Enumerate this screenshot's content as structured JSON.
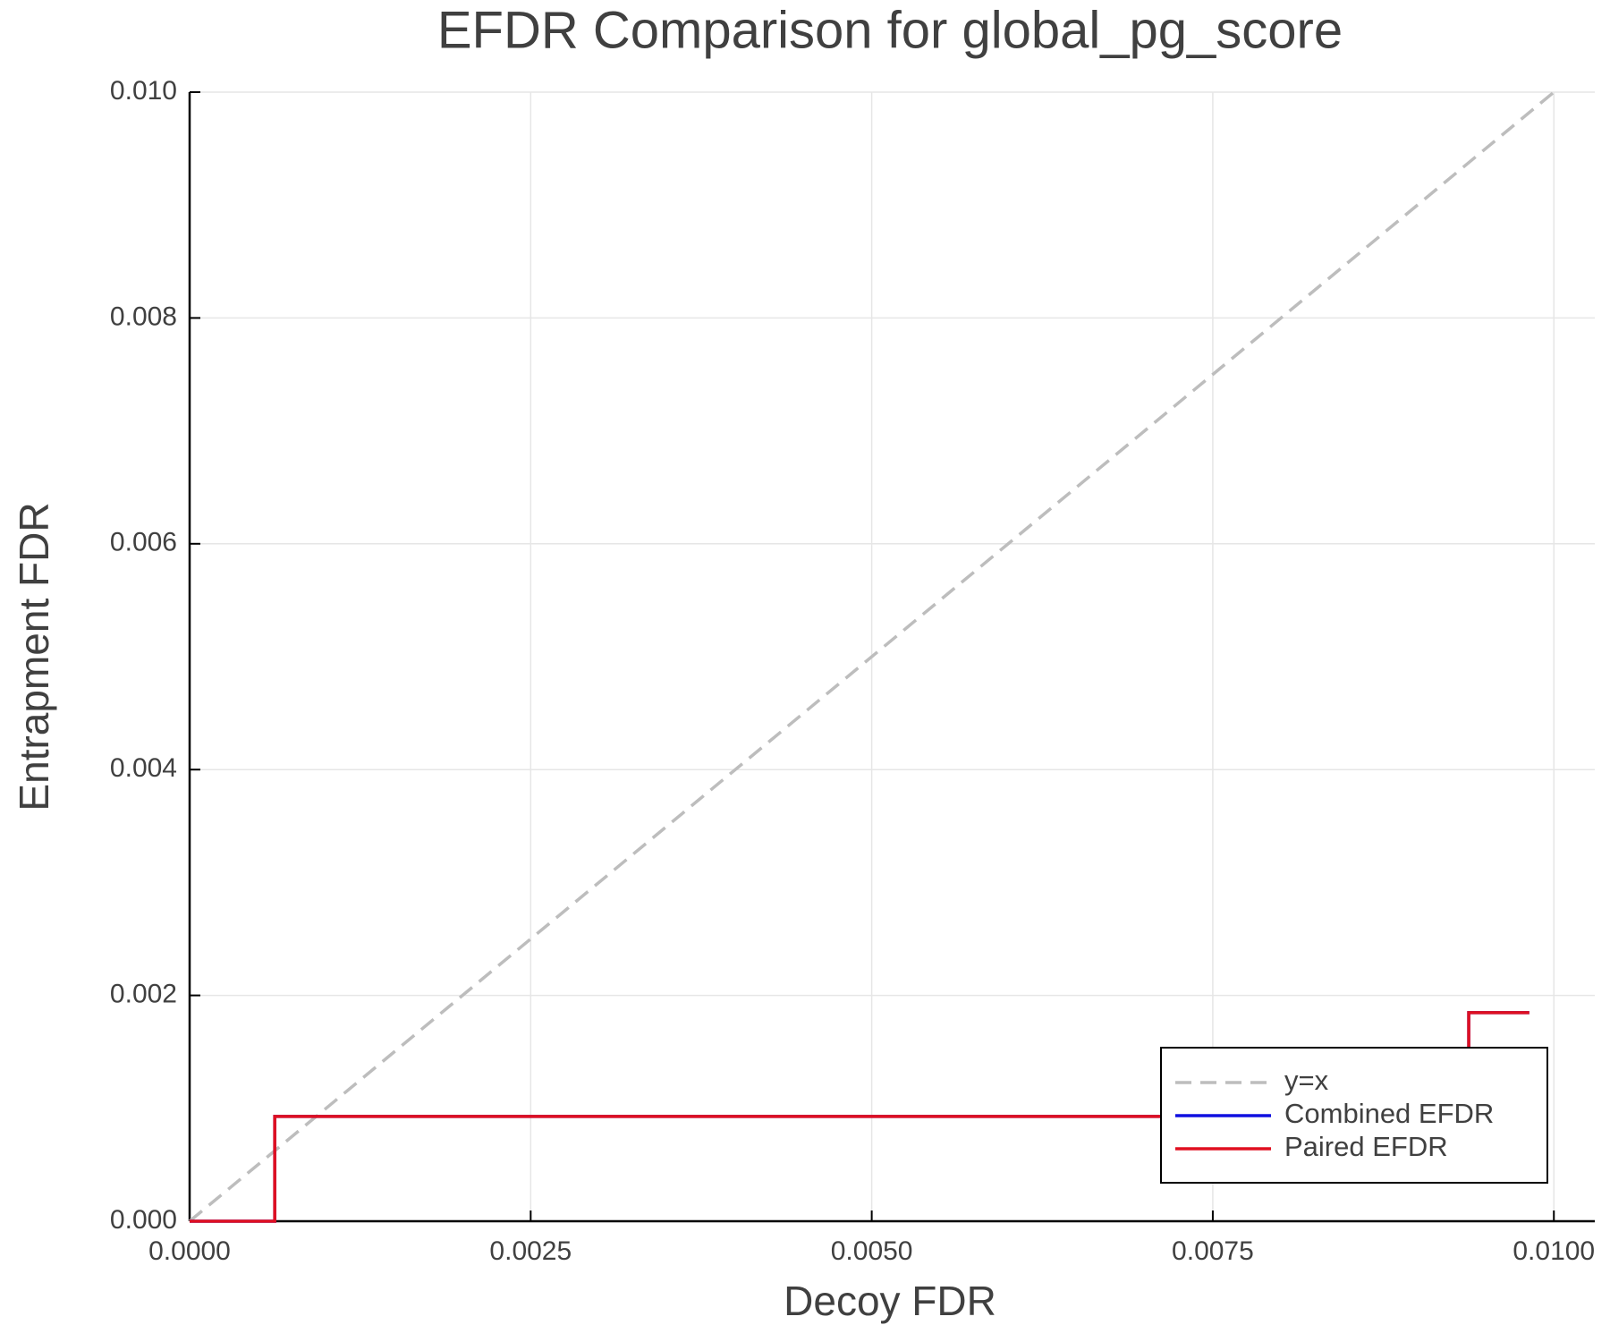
{
  "chart_data": {
    "type": "line",
    "title": "EFDR Comparison for global_pg_score",
    "x_label": "Decoy FDR",
    "y_label": "Entrapment FDR",
    "xlim": [
      0,
      0.0103
    ],
    "ylim": [
      0,
      0.01
    ],
    "xticks": [
      {
        "value": 0,
        "label": "0.0000"
      },
      {
        "value": 0.0025,
        "label": "0.0025"
      },
      {
        "value": 0.005,
        "label": "0.0050"
      },
      {
        "value": 0.0075,
        "label": "0.0075"
      },
      {
        "value": 0.01,
        "label": "0.0100"
      }
    ],
    "yticks": [
      {
        "value": 0,
        "label": "0.000"
      },
      {
        "value": 0.002,
        "label": "0.002"
      },
      {
        "value": 0.004,
        "label": "0.004"
      },
      {
        "value": 0.006,
        "label": "0.006"
      },
      {
        "value": 0.008,
        "label": "0.008"
      },
      {
        "value": 0.01,
        "label": "0.010"
      }
    ],
    "grid": true,
    "legend": "lower right",
    "series": [
      {
        "name": "y=x",
        "color": "#bdbdbd",
        "linestyle": "dash",
        "x": [
          0,
          0.01
        ],
        "values": [
          0,
          0.01
        ]
      },
      {
        "name": "Combined EFDR",
        "color": "#1010e0",
        "linestyle": "solid",
        "x": [
          0,
          0.000624,
          0.000624,
          0.009376,
          0.009376,
          0.00982
        ],
        "values": [
          0,
          0,
          0.000928,
          0.000928,
          0.001847,
          0.001847
        ]
      },
      {
        "name": "Paired EFDR",
        "color": "#e01020",
        "linestyle": "solid",
        "x": [
          0,
          0.000624,
          0.000624,
          0.009376,
          0.009376,
          0.00982
        ],
        "values": [
          0,
          0,
          0.000928,
          0.000928,
          0.001847,
          0.001847
        ]
      }
    ]
  }
}
